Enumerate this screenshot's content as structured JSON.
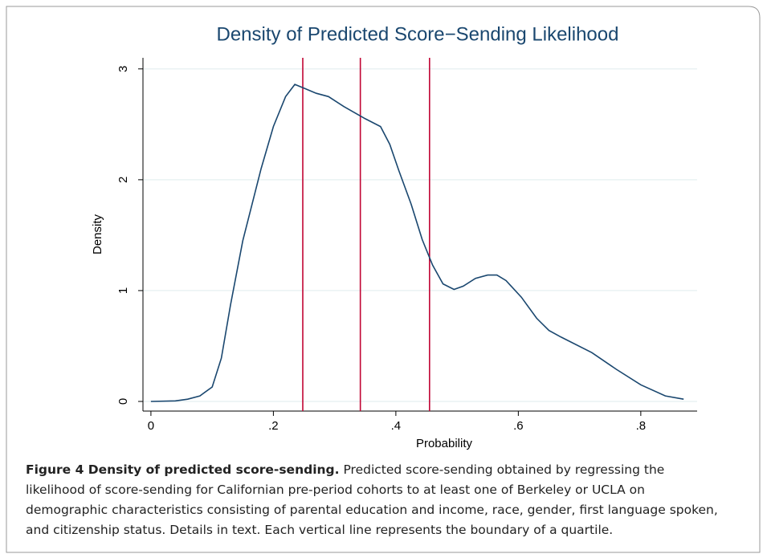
{
  "chart_data": {
    "type": "line",
    "title": "Density of Predicted Score−Sending Likelihood",
    "xlabel": "Probability",
    "ylabel": "Density",
    "x": [
      0.0,
      0.04,
      0.06,
      0.08,
      0.1,
      0.115,
      0.13,
      0.15,
      0.18,
      0.2,
      0.22,
      0.235,
      0.27,
      0.29,
      0.315,
      0.35,
      0.375,
      0.39,
      0.405,
      0.425,
      0.443,
      0.46,
      0.477,
      0.495,
      0.51,
      0.53,
      0.55,
      0.565,
      0.58,
      0.605,
      0.63,
      0.65,
      0.67,
      0.72,
      0.76,
      0.8,
      0.84,
      0.87
    ],
    "values": [
      0.0,
      0.005,
      0.02,
      0.05,
      0.13,
      0.39,
      0.87,
      1.45,
      2.1,
      2.48,
      2.75,
      2.86,
      2.78,
      2.75,
      2.66,
      2.55,
      2.48,
      2.32,
      2.08,
      1.78,
      1.46,
      1.23,
      1.06,
      1.01,
      1.04,
      1.11,
      1.14,
      1.14,
      1.09,
      0.94,
      0.75,
      0.64,
      0.58,
      0.44,
      0.29,
      0.15,
      0.05,
      0.02
    ],
    "color": "#1a476f",
    "vlines": [
      0.248,
      0.342,
      0.455
    ],
    "vline_color": "#c10534",
    "xlim": [
      -0.013,
      0.892
    ],
    "xticks": [
      0,
      {
        "value": 0.2,
        "label": ".2"
      },
      {
        "value": 0.4,
        "label": ".4"
      },
      {
        "value": 0.6,
        "label": ".6"
      },
      {
        "value": 0.8,
        "label": ".8"
      }
    ],
    "ylim": [
      -0.087,
      3.1
    ],
    "yticks": [
      0,
      1,
      2,
      3
    ],
    "grid": true
  },
  "caption": {
    "label": "Figure 4 Density of predicted score-sending.",
    "text": "Predicted score-sending obtained by regressing the likelihood of score-sending for Californian pre-period cohorts to at least one of Berkeley or UCLA on demographic characteristics consisting of parental education and income, race, gender, first language spoken, and citizenship status. Details in text. Each vertical line represents the boundary of a quartile."
  }
}
